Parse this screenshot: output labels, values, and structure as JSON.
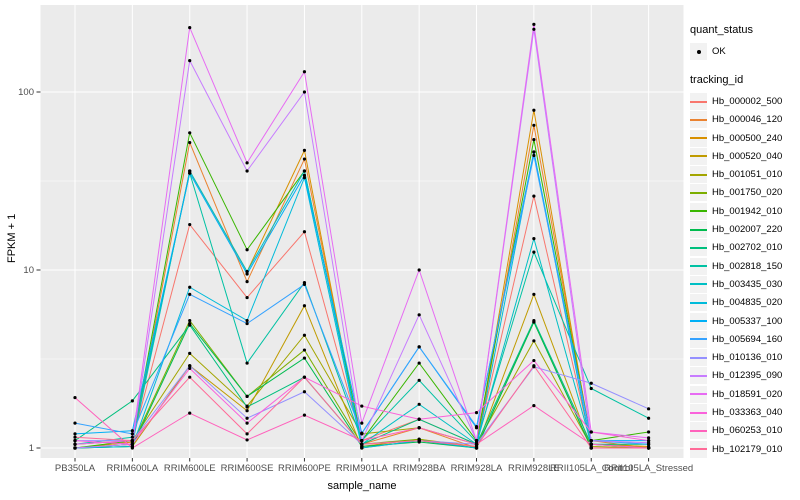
{
  "figure": {
    "bg": "#FFFFFF",
    "panel_bg": "#EBEBEB",
    "grid_color": "#FFFFFF",
    "key_bg": "#F2F2F2",
    "tick_color": "#333333",
    "tick_label_color": "#4D4D4D",
    "point_color": "#000000"
  },
  "axis": {
    "x_title": "sample_name",
    "y_title": "FPKM + 1"
  },
  "legend": {
    "quant_status_title": "quant_status",
    "quant_status_ok_label": "OK",
    "tracking_id_title": "tracking_id"
  },
  "chart_data": {
    "type": "line",
    "title": "",
    "xlabel": "sample_name",
    "ylabel": "FPKM + 1",
    "y_scale": "log10",
    "y_ticks": [
      1,
      10,
      100
    ],
    "y_minor_ticks": [
      3.162,
      31.623
    ],
    "ylim": [
      0.88,
      310
    ],
    "grid": true,
    "legend_position": "right",
    "marker": "point",
    "quant_status": "OK",
    "categories": [
      "PB350LA",
      "RRIM600LA",
      "RRIM600LE",
      "RRIM600SE",
      "RRIM600PE",
      "RRIM901LA",
      "RRIM928BA",
      "RRIM928LA",
      "RRIM928LE",
      "RRII105LA_Control",
      "RRII105LA_Stressed"
    ],
    "series": [
      {
        "name": "Hb_000002_500",
        "color": "#F8766D",
        "values": [
          1.05,
          1.1,
          18,
          7.0,
          16.4,
          1.1,
          1.45,
          1.05,
          26,
          1.05,
          1.0
        ]
      },
      {
        "name": "Hb_000046_120",
        "color": "#EA8331",
        "values": [
          1.0,
          1.05,
          52,
          8.6,
          42,
          1.05,
          1.3,
          1.0,
          65,
          1.1,
          1.0
        ]
      },
      {
        "name": "Hb_000500_240",
        "color": "#D89000",
        "values": [
          1.0,
          1.08,
          36,
          9.8,
          47,
          1.02,
          1.12,
          1.02,
          79,
          1.05,
          1.02
        ]
      },
      {
        "name": "Hb_000520_040",
        "color": "#C09B00",
        "values": [
          1.0,
          1.02,
          2.9,
          1.62,
          6.3,
          1.0,
          1.1,
          1.0,
          7.3,
          1.0,
          1.0
        ]
      },
      {
        "name": "Hb_001051_010",
        "color": "#A3A500",
        "values": [
          1.05,
          1.1,
          3.4,
          1.72,
          4.3,
          1.2,
          1.3,
          1.05,
          4.0,
          1.02,
          1.0
        ]
      },
      {
        "name": "Hb_001750_020",
        "color": "#7CAE00",
        "values": [
          1.0,
          1.05,
          5.2,
          1.95,
          3.55,
          1.05,
          1.12,
          1.0,
          5.1,
          1.0,
          1.0
        ]
      },
      {
        "name": "Hb_001942_010",
        "color": "#39B600",
        "values": [
          1.0,
          1.1,
          59,
          13,
          36,
          1.1,
          3.0,
          1.1,
          54,
          1.1,
          1.23
        ]
      },
      {
        "name": "Hb_002007_220",
        "color": "#00BB4E",
        "values": [
          1.0,
          1.02,
          5.0,
          1.95,
          3.2,
          1.02,
          1.08,
          1.0,
          5.1,
          1.0,
          1.0
        ]
      },
      {
        "name": "Hb_002702_010",
        "color": "#00BF7D",
        "values": [
          1.1,
          1.84,
          4.9,
          1.7,
          2.5,
          1.05,
          1.45,
          1.05,
          5.2,
          1.05,
          1.05
        ]
      },
      {
        "name": "Hb_002818_150",
        "color": "#00C1A3",
        "values": [
          1.05,
          1.15,
          35,
          3.0,
          8.5,
          1.1,
          2.4,
          1.08,
          12.6,
          2.16,
          1.47
        ]
      },
      {
        "name": "Hb_003435_030",
        "color": "#00BFC4",
        "values": [
          1.0,
          1.05,
          36,
          9.8,
          36,
          1.05,
          1.76,
          1.05,
          15,
          1.05,
          1.0
        ]
      },
      {
        "name": "Hb_004835_020",
        "color": "#00BBDA",
        "values": [
          1.0,
          1.02,
          8.0,
          5.2,
          33,
          1.0,
          1.1,
          1.0,
          46,
          1.0,
          1.0
        ]
      },
      {
        "name": "Hb_005337_100",
        "color": "#00B0F6",
        "values": [
          1.2,
          1.25,
          35,
          9.5,
          34,
          1.21,
          3.7,
          1.3,
          46,
          1.1,
          1.1
        ]
      },
      {
        "name": "Hb_005694_160",
        "color": "#35A2FF",
        "values": [
          1.38,
          1.2,
          7.3,
          5.0,
          8.3,
          1.21,
          3.7,
          1.32,
          44,
          1.1,
          1.05
        ]
      },
      {
        "name": "Hb_010136_010",
        "color": "#9590FF",
        "values": [
          1.1,
          1.1,
          2.9,
          1.47,
          2.07,
          1.05,
          1.1,
          1.05,
          2.86,
          2.31,
          1.66
        ]
      },
      {
        "name": "Hb_012395_090",
        "color": "#C77CFF",
        "values": [
          1.0,
          1.05,
          150,
          36,
          100,
          1.1,
          5.6,
          1.1,
          225,
          1.1,
          1.07
        ]
      },
      {
        "name": "Hb_018591_020",
        "color": "#E76BF3",
        "values": [
          1.05,
          1.1,
          230,
          40,
          130,
          1.38,
          10,
          1.1,
          240,
          1.23,
          1.14
        ]
      },
      {
        "name": "Hb_033363_040",
        "color": "#FA62DB",
        "values": [
          1.1,
          1.05,
          2.8,
          1.38,
          2.5,
          1.72,
          1.45,
          1.58,
          3.1,
          1.23,
          1.1
        ]
      },
      {
        "name": "Hb_060253_010",
        "color": "#FF62BC",
        "values": [
          1.92,
          1.0,
          1.57,
          1.11,
          1.53,
          1.1,
          1.3,
          1.05,
          1.73,
          1.05,
          1.0
        ]
      },
      {
        "name": "Hb_102179_010",
        "color": "#FF6A98",
        "values": [
          1.15,
          1.1,
          2.5,
          1.2,
          2.5,
          1.05,
          1.1,
          1.02,
          2.9,
          1.0,
          1.0
        ]
      }
    ]
  }
}
